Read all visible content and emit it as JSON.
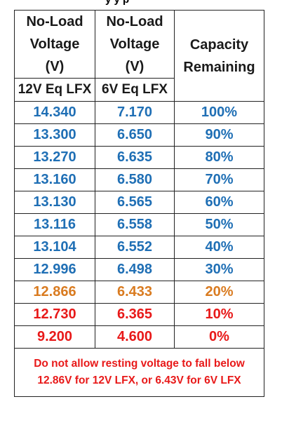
{
  "clipped_title": "y y p",
  "headers": {
    "col1": [
      "No-Load",
      "Voltage",
      "(V)"
    ],
    "col2": [
      "No-Load",
      "Voltage",
      "(V)"
    ],
    "col3": [
      "Capacity",
      "Remaining"
    ],
    "sub1": "12V Eq LFX",
    "sub2": "6V Eq LFX"
  },
  "rows": [
    {
      "v12": "14.340",
      "v6": "7.170",
      "cap": "100%",
      "color": "blue"
    },
    {
      "v12": "13.300",
      "v6": "6.650",
      "cap": "90%",
      "color": "blue"
    },
    {
      "v12": "13.270",
      "v6": "6.635",
      "cap": "80%",
      "color": "blue"
    },
    {
      "v12": "13.160",
      "v6": "6.580",
      "cap": "70%",
      "color": "blue"
    },
    {
      "v12": "13.130",
      "v6": "6.565",
      "cap": "60%",
      "color": "blue"
    },
    {
      "v12": "13.116",
      "v6": "6.558",
      "cap": "50%",
      "color": "blue"
    },
    {
      "v12": "13.104",
      "v6": "6.552",
      "cap": "40%",
      "color": "blue"
    },
    {
      "v12": "12.996",
      "v6": "6.498",
      "cap": "30%",
      "color": "blue"
    },
    {
      "v12": "12.866",
      "v6": "6.433",
      "cap": "20%",
      "color": "orange"
    },
    {
      "v12": "12.730",
      "v6": "6.365",
      "cap": "10%",
      "color": "red"
    },
    {
      "v12": "9.200",
      "v6": "4.600",
      "cap": "0%",
      "color": "red"
    }
  ],
  "note": {
    "line1": "Do not allow resting voltage to fall below",
    "line2": "12.86V for 12V LFX, or 6.43V for 6V LFX"
  },
  "colors": {
    "blue": "#1f6fb5",
    "orange": "#d97b20",
    "red": "#e81919"
  }
}
